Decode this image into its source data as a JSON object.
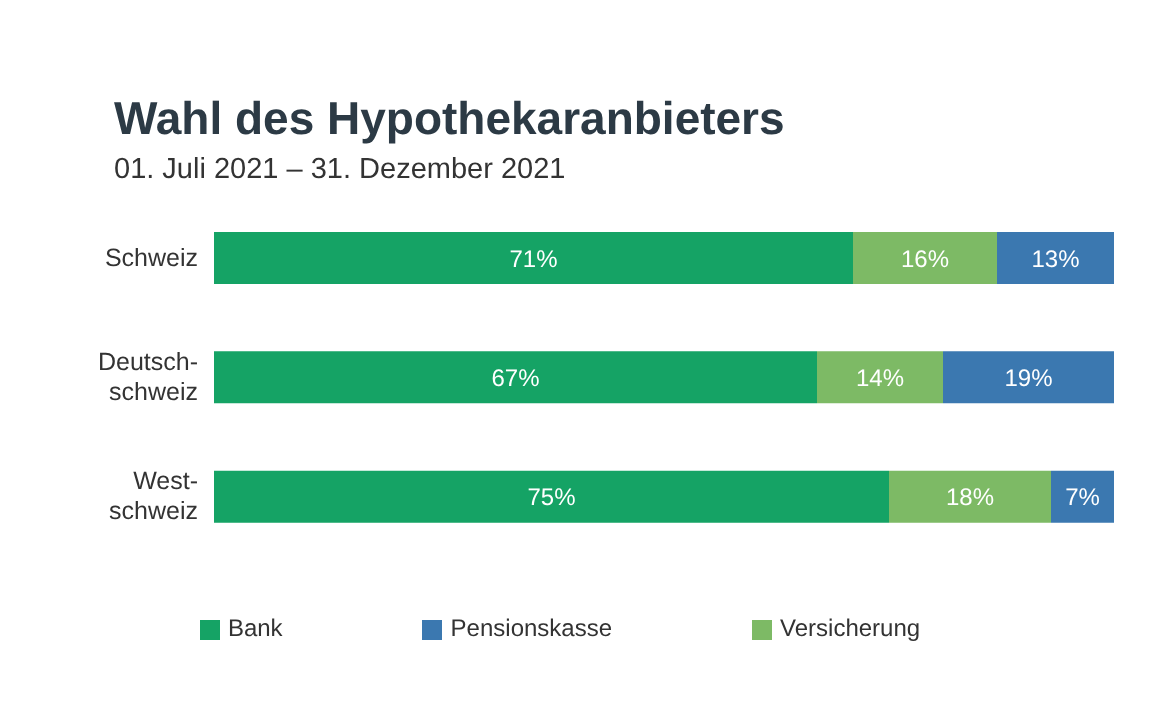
{
  "chart_data": {
    "type": "bar",
    "orientation": "horizontal",
    "stacked": true,
    "title": "Wahl des Hypothekaranbieters",
    "subtitle": "01. Juli 2021 – 31. Dezember 2021",
    "categories": [
      "Schweiz",
      "Deutsch-\nschweiz",
      "West-\nschweiz"
    ],
    "series": [
      {
        "name": "Bank",
        "color": "#15a365",
        "values": [
          71,
          67,
          75
        ],
        "value_labels": [
          "71%",
          "67%",
          "75%"
        ]
      },
      {
        "name": "Versicherung",
        "color": "#7dba65",
        "values": [
          16,
          14,
          18
        ],
        "value_labels": [
          "16%",
          "14%",
          "18%"
        ]
      },
      {
        "name": "Pensionskasse",
        "color": "#3b78b0",
        "values": [
          13,
          19,
          7
        ],
        "value_labels": [
          "13%",
          "19%",
          "7%"
        ]
      }
    ],
    "legend": "bottom",
    "grid": false,
    "tick_labels": "y"
  }
}
